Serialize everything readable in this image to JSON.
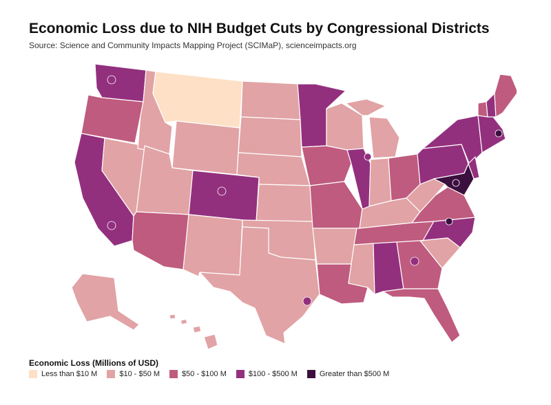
{
  "title": "Economic Loss due to NIH Budget Cuts by Congressional Districts",
  "subtitle": "Source: Science and Community Impacts Mapping Project (SCIMaP), scienceimpacts.org",
  "legend": {
    "title": "Economic Loss (Millions of USD)",
    "items": [
      {
        "label": "Less than $10 M",
        "color": "#fde0c5"
      },
      {
        "label": "$10 - $50 M",
        "color": "#e1a3a5"
      },
      {
        "label": "$50 - $100 M",
        "color": "#bf5b7e"
      },
      {
        "label": "$100 - $500 M",
        "color": "#93307e"
      },
      {
        "label": "Greater than $500 M",
        "color": "#3b0f3e"
      }
    ]
  },
  "map": {
    "regions": [
      {
        "name": "Washington",
        "bin": 3
      },
      {
        "name": "Oregon",
        "bin": 2
      },
      {
        "name": "California",
        "bin": 3
      },
      {
        "name": "Nevada",
        "bin": 1
      },
      {
        "name": "Idaho",
        "bin": 1
      },
      {
        "name": "Montana",
        "bin": 0
      },
      {
        "name": "Wyoming",
        "bin": 1
      },
      {
        "name": "Utah",
        "bin": 1
      },
      {
        "name": "Colorado",
        "bin": 3
      },
      {
        "name": "Arizona",
        "bin": 2
      },
      {
        "name": "New Mexico",
        "bin": 1
      },
      {
        "name": "North Dakota",
        "bin": 1
      },
      {
        "name": "South Dakota",
        "bin": 1
      },
      {
        "name": "Nebraska",
        "bin": 1
      },
      {
        "name": "Kansas",
        "bin": 1
      },
      {
        "name": "Oklahoma",
        "bin": 1
      },
      {
        "name": "Texas",
        "bin": 1
      },
      {
        "name": "Minnesota",
        "bin": 3
      },
      {
        "name": "Iowa",
        "bin": 2
      },
      {
        "name": "Missouri",
        "bin": 2
      },
      {
        "name": "Arkansas",
        "bin": 1
      },
      {
        "name": "Louisiana",
        "bin": 2
      },
      {
        "name": "Wisconsin",
        "bin": 1
      },
      {
        "name": "Illinois",
        "bin": 3
      },
      {
        "name": "Michigan",
        "bin": 1
      },
      {
        "name": "Indiana",
        "bin": 1
      },
      {
        "name": "Ohio",
        "bin": 2
      },
      {
        "name": "Kentucky",
        "bin": 1
      },
      {
        "name": "Tennessee",
        "bin": 2
      },
      {
        "name": "Mississippi",
        "bin": 1
      },
      {
        "name": "Alabama",
        "bin": 3
      },
      {
        "name": "Georgia",
        "bin": 2
      },
      {
        "name": "Florida",
        "bin": 2
      },
      {
        "name": "South Carolina",
        "bin": 1
      },
      {
        "name": "North Carolina",
        "bin": 3
      },
      {
        "name": "Virginia",
        "bin": 2
      },
      {
        "name": "West Virginia",
        "bin": 1
      },
      {
        "name": "Pennsylvania",
        "bin": 3
      },
      {
        "name": "New York",
        "bin": 3
      },
      {
        "name": "Maryland",
        "bin": 4
      },
      {
        "name": "Massachusetts",
        "bin": 3
      },
      {
        "name": "Vermont",
        "bin": 2
      },
      {
        "name": "New Hampshire",
        "bin": 3
      },
      {
        "name": "Maine",
        "bin": 2
      },
      {
        "name": "Alaska",
        "bin": 1
      },
      {
        "name": "Hawaii",
        "bin": 1
      }
    ]
  }
}
